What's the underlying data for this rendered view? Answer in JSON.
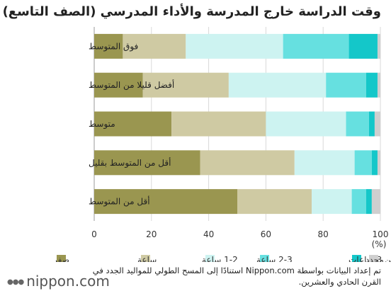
{
  "chart_data": {
    "type": "bar",
    "orientation": "horizontal",
    "stacked": true,
    "title": "وقت الدراسة خارج المدرسة والأداء المدرسي (الصف التاسع)",
    "xlabel": "(%)",
    "xlim": [
      0,
      100
    ],
    "xticks": [
      0,
      20,
      40,
      60,
      80,
      100
    ],
    "grid": true,
    "legend_position": "bottom",
    "categories": [
      "فوق المتوسط",
      "أفضل قليلا من المتوسط",
      "متوسط",
      "أقل من المتوسط بقليل",
      "أقل من المتوسط"
    ],
    "series": [
      {
        "name": "صفر",
        "color": "#9a9650",
        "values": [
          10,
          17,
          27,
          37,
          50
        ]
      },
      {
        "name": "ساعة",
        "color": "#cfcaa3",
        "values": [
          22,
          30,
          33,
          33,
          26
        ]
      },
      {
        "name": "1-2 ساعة",
        "color": "#cdf3f1",
        "values": [
          34,
          34,
          28,
          21,
          14
        ]
      },
      {
        "name": "2-3 ساعة",
        "color": "#66e0e0",
        "values": [
          23,
          14,
          8,
          6,
          5
        ]
      },
      {
        "name": "أكثر من 3 ساعات",
        "color": "#14c7c9",
        "values": [
          10,
          4,
          2,
          2,
          2
        ]
      },
      {
        "name": "غير محدد",
        "color": "#cfcfcf",
        "values": [
          1,
          1,
          2,
          1,
          3
        ]
      }
    ]
  },
  "source_text": "تم إعداد البيانات بواسطة Nippon.com استنادًا إلى المسح الطولي للمواليد الجدد في القرن الحادي والعشرين.",
  "logo": {
    "dots": "●●●",
    "text": "nippon.com"
  }
}
